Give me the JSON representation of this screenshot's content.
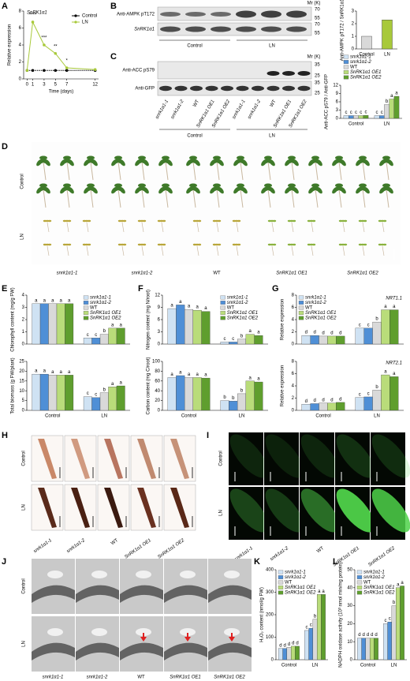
{
  "chart_data": [
    {
      "type": "line",
      "title": "SnRK1α1",
      "x_label": "Time (days)",
      "y_label": "Relative expression",
      "x": [
        0,
        1,
        3,
        5,
        7,
        12
      ],
      "xlim": [
        -0.6,
        12.6
      ],
      "xticks": [
        0,
        1,
        3,
        5,
        7,
        12
      ],
      "ylim": [
        0,
        8
      ],
      "yticks": [
        0,
        2,
        4,
        6,
        8
      ],
      "legend": "top-right",
      "series": [
        {
          "name": "Control",
          "color": "#000000",
          "values": [
            1,
            1,
            1,
            1,
            1,
            1
          ]
        },
        {
          "name": "LN",
          "color": "#a8c93a",
          "values": [
            1,
            6.7,
            4.0,
            3.0,
            1.3,
            1.1
          ]
        }
      ],
      "annotations": [
        {
          "x": 1,
          "text": "****"
        },
        {
          "x": 3,
          "text": "***"
        },
        {
          "x": 5,
          "text": "**"
        },
        {
          "x": 7,
          "text": "*"
        }
      ]
    },
    {
      "type": "bar",
      "y_label": "Anti-AMPK pT172 / SnRK1α1",
      "categories": [
        "Control",
        "LN"
      ],
      "values": [
        1,
        2.3
      ],
      "colors": [
        "#d9d9d9",
        "#a8c93a"
      ],
      "ylim": [
        0,
        3
      ],
      "yticks": [
        0,
        1,
        2,
        3
      ]
    },
    {
      "type": "bar",
      "y_label": "Anti-ACC pS79 / Anti-GFP",
      "categories": [
        "Control",
        "LN"
      ],
      "ylim": [
        0,
        12
      ],
      "yticks": [
        0,
        3,
        6,
        9,
        12
      ],
      "legend": "above",
      "series": [
        {
          "name": "snrk1α1-1",
          "color": "#cfe2f3",
          "values": [
            1,
            1
          ],
          "letters": [
            "c",
            "c"
          ]
        },
        {
          "name": "snrk1α1-2",
          "color": "#4f8fd6",
          "values": [
            1,
            1
          ],
          "letters": [
            "c",
            "c"
          ]
        },
        {
          "name": "WT",
          "color": "#d9d9d9",
          "values": [
            1,
            5
          ],
          "letters": [
            "c",
            "b"
          ]
        },
        {
          "name": "SnRK1α1 OE1",
          "color": "#b9dc7a",
          "values": [
            1,
            7
          ],
          "letters": [
            "c",
            "a"
          ]
        },
        {
          "name": "SnRK1α1 OE2",
          "color": "#5f9e2e",
          "values": [
            1.1,
            8
          ],
          "letters": [
            "c",
            "a"
          ]
        }
      ]
    },
    {
      "type": "bar",
      "y_label": "Chlorophyll content (mg/g FW)",
      "categories": [
        null,
        null
      ],
      "ylim": [
        0,
        4
      ],
      "yticks": [
        0,
        1,
        2,
        3,
        4
      ],
      "legend": "top-right",
      "series": [
        {
          "name": "snrk1α1-1",
          "color": "#cfe2f3",
          "values": [
            3.3,
            0.5
          ],
          "letters": [
            "a",
            "c"
          ]
        },
        {
          "name": "snrk1α1-2",
          "color": "#4f8fd6",
          "values": [
            3.3,
            0.5
          ],
          "letters": [
            "a",
            "c"
          ]
        },
        {
          "name": "WT",
          "color": "#d9d9d9",
          "values": [
            3.3,
            0.8
          ],
          "letters": [
            "a",
            "b"
          ]
        },
        {
          "name": "SnRK1α1 OE1",
          "color": "#b9dc7a",
          "values": [
            3.3,
            1.3
          ],
          "letters": [
            "a",
            "a"
          ]
        },
        {
          "name": "SnRK1α1 OE2",
          "color": "#5f9e2e",
          "values": [
            3.3,
            1.3
          ],
          "letters": [
            "a",
            "a"
          ]
        }
      ]
    },
    {
      "type": "bar",
      "y_label": "Total biomass (g FW/plant)",
      "categories": [
        "Control",
        "LN"
      ],
      "ylim": [
        0,
        25
      ],
      "yticks": [
        0,
        5,
        10,
        15,
        20,
        25
      ],
      "series": [
        {
          "name": "snrk1α1-1",
          "color": "#cfe2f3",
          "values": [
            18.5,
            7
          ],
          "letters": [
            "a",
            "c"
          ]
        },
        {
          "name": "snrk1α1-2",
          "color": "#4f8fd6",
          "values": [
            18.5,
            6.5
          ],
          "letters": [
            "a",
            "c"
          ]
        },
        {
          "name": "WT",
          "color": "#d9d9d9",
          "values": [
            18,
            9
          ],
          "letters": [
            "a",
            "b"
          ]
        },
        {
          "name": "SnRK1α1 OE1",
          "color": "#b9dc7a",
          "values": [
            18,
            12
          ],
          "letters": [
            "a",
            "a"
          ]
        },
        {
          "name": "SnRK1α1 OE2",
          "color": "#5f9e2e",
          "values": [
            18,
            12.5
          ],
          "letters": [
            "a",
            "a"
          ]
        }
      ]
    },
    {
      "type": "bar",
      "y_label": "Nitrogen content (mg N/root)",
      "categories": [
        null,
        null
      ],
      "ylim": [
        0,
        12
      ],
      "yticks": [
        0,
        3,
        6,
        9,
        12
      ],
      "legend": "top-right",
      "series": [
        {
          "name": "snrk1α1-1",
          "color": "#cfe2f3",
          "values": [
            8.7,
            0.5
          ],
          "letters": [
            "a",
            "c"
          ]
        },
        {
          "name": "snrk1α1-2",
          "color": "#4f8fd6",
          "values": [
            9.6,
            0.5
          ],
          "letters": [
            "a",
            "c"
          ]
        },
        {
          "name": "WT",
          "color": "#d9d9d9",
          "values": [
            8.5,
            1.2
          ],
          "letters": [
            "a",
            "b"
          ]
        },
        {
          "name": "SnRK1α1 OE1",
          "color": "#b9dc7a",
          "values": [
            8.3,
            2.4
          ],
          "letters": [
            "a",
            "a"
          ]
        },
        {
          "name": "SnRK1α1 OE2",
          "color": "#5f9e2e",
          "values": [
            8,
            2.1
          ],
          "letters": [
            "a",
            "a"
          ]
        }
      ]
    },
    {
      "type": "bar",
      "y_label": "Carbon content (mg C/root)",
      "categories": [
        "Control",
        "LN"
      ],
      "ylim": [
        0,
        100
      ],
      "yticks": [
        0,
        20,
        40,
        60,
        80,
        100
      ],
      "series": [
        {
          "name": "snrk1α1-1",
          "color": "#cfe2f3",
          "values": [
            67,
            20
          ],
          "letters": [
            "a",
            "b"
          ]
        },
        {
          "name": "snrk1α1-2",
          "color": "#4f8fd6",
          "values": [
            71,
            19
          ],
          "letters": [
            "a",
            "b"
          ]
        },
        {
          "name": "WT",
          "color": "#d9d9d9",
          "values": [
            67,
            34
          ],
          "letters": [
            "a",
            "b"
          ]
        },
        {
          "name": "SnRK1α1 OE1",
          "color": "#b9dc7a",
          "values": [
            67,
            60
          ],
          "letters": [
            "a",
            "a"
          ]
        },
        {
          "name": "SnRK1α1 OE2",
          "color": "#5f9e2e",
          "values": [
            66,
            58
          ],
          "letters": [
            "a",
            "a"
          ]
        }
      ]
    },
    {
      "type": "bar",
      "y_label": "Relative expression",
      "annotation": "NRT1.1",
      "categories": [
        null,
        null
      ],
      "ylim": [
        0,
        8
      ],
      "yticks": [
        0,
        2,
        4,
        6,
        8
      ],
      "legend": "top-left",
      "series": [
        {
          "name": "snrk1α1-1",
          "color": "#cfe2f3",
          "values": [
            1.4,
            2.6
          ],
          "letters": [
            "d",
            "c"
          ]
        },
        {
          "name": "snrk1α1-2",
          "color": "#4f8fd6",
          "values": [
            1.4,
            2.6
          ],
          "letters": [
            "d",
            "c"
          ]
        },
        {
          "name": "WT",
          "color": "#d9d9d9",
          "values": [
            1.3,
            3.6
          ],
          "letters": [
            "d",
            "b"
          ]
        },
        {
          "name": "SnRK1α1 OE1",
          "color": "#b9dc7a",
          "values": [
            1.3,
            5.6
          ],
          "letters": [
            "d",
            "a"
          ]
        },
        {
          "name": "SnRK1α1 OE2",
          "color": "#5f9e2e",
          "values": [
            1.3,
            5.6
          ],
          "letters": [
            "d",
            "a"
          ]
        }
      ]
    },
    {
      "type": "bar",
      "y_label": "Relative expression",
      "annotation": "NRT2.1",
      "categories": [
        "Control",
        "LN"
      ],
      "ylim": [
        0,
        8
      ],
      "yticks": [
        0,
        2,
        4,
        6,
        8
      ],
      "series": [
        {
          "name": "snrk1α1-1",
          "color": "#cfe2f3",
          "values": [
            1,
            2.1
          ],
          "letters": [
            "d",
            "c"
          ]
        },
        {
          "name": "snrk1α1-2",
          "color": "#4f8fd6",
          "values": [
            1.1,
            2.2
          ],
          "letters": [
            "d",
            "c"
          ]
        },
        {
          "name": "WT",
          "color": "#d9d9d9",
          "values": [
            1.2,
            3.3
          ],
          "letters": [
            "d",
            "b"
          ]
        },
        {
          "name": "SnRK1α1 OE1",
          "color": "#b9dc7a",
          "values": [
            1.2,
            5.8
          ],
          "letters": [
            "d",
            "a"
          ]
        },
        {
          "name": "SnRK1α1 OE2",
          "color": "#5f9e2e",
          "values": [
            1.3,
            5.5
          ],
          "letters": [
            "d",
            "a"
          ]
        }
      ]
    },
    {
      "type": "bar",
      "y_label": "H₂O₂ content (nmol/g FW)",
      "categories": [
        "Control",
        "LN"
      ],
      "ylim": [
        0,
        400
      ],
      "yticks": [
        0,
        100,
        200,
        300,
        400
      ],
      "legend": "top-left",
      "series": [
        {
          "name": "snrk1α1-1",
          "color": "#cfe2f3",
          "values": [
            50,
            130
          ],
          "letters": [
            "d",
            "c"
          ]
        },
        {
          "name": "snrk1α1-2",
          "color": "#4f8fd6",
          "values": [
            50,
            140
          ],
          "letters": [
            "d",
            "c"
          ]
        },
        {
          "name": "WT",
          "color": "#d9d9d9",
          "values": [
            55,
            180
          ],
          "letters": [
            "d",
            "b"
          ]
        },
        {
          "name": "SnRK1α1 OE1",
          "color": "#b9dc7a",
          "values": [
            60,
            290
          ],
          "letters": [
            "d",
            "a"
          ]
        },
        {
          "name": "SnRK1α1 OE2",
          "color": "#5f9e2e",
          "values": [
            60,
            290
          ],
          "letters": [
            "d",
            "a"
          ]
        }
      ]
    },
    {
      "type": "bar",
      "y_label": "NADPH oxidase activity (10³ nmol min/mg protein)",
      "categories": [
        "Control",
        "LN"
      ],
      "ylim": [
        0,
        50
      ],
      "yticks": [
        0,
        10,
        20,
        30,
        40,
        50
      ],
      "legend": "top-left",
      "series": [
        {
          "name": "snrk1α1-1",
          "color": "#cfe2f3",
          "values": [
            12,
            20
          ],
          "letters": [
            "d",
            "c"
          ]
        },
        {
          "name": "snrk1α1-2",
          "color": "#4f8fd6",
          "values": [
            12,
            21
          ],
          "letters": [
            "d",
            "c"
          ]
        },
        {
          "name": "WT",
          "color": "#d9d9d9",
          "values": [
            12,
            30
          ],
          "letters": [
            "d",
            "b"
          ]
        },
        {
          "name": "SnRK1α1 OE1",
          "color": "#b9dc7a",
          "values": [
            12,
            40
          ],
          "letters": [
            "d",
            "a"
          ]
        },
        {
          "name": "SnRK1α1 OE2",
          "color": "#5f9e2e",
          "values": [
            12,
            41
          ],
          "letters": [
            "d",
            "a"
          ]
        }
      ]
    }
  ],
  "panels": [
    "A",
    "B",
    "C",
    "D",
    "E",
    "F",
    "G",
    "H",
    "I",
    "J",
    "K",
    "L"
  ],
  "blot_b": {
    "mr": "Mr (K)",
    "rows": [
      "Anti-AMPK pT172",
      "SnRK1α1"
    ],
    "markers": [
      70,
      55,
      70,
      55
    ],
    "groups": [
      "Control",
      "LN"
    ]
  },
  "blot_c": {
    "mr": "Mr (K)",
    "rows": [
      "Anti-ACC pS79",
      "Anti-GFP"
    ],
    "markers": [
      35,
      25,
      35,
      25
    ],
    "lanes": [
      "snrk1α1-1",
      "snrk1α1-2",
      "WT",
      "SnRK1α1 OE1",
      "SnRK1α1 OE2",
      "snrk1α1-1",
      "snrk1α1-2",
      "WT",
      "SnRK1α1 OE1",
      "SnRK1α1 OE2"
    ],
    "groups": [
      "Control",
      "LN"
    ]
  },
  "photos_d": {
    "rows": [
      "Control",
      "LN"
    ],
    "columns": [
      "snrk1α1-1",
      "snrk1α1-2",
      "WT",
      "SnRK1α1 OE1",
      "SnRK1α1 OE2"
    ]
  },
  "photos_h": {
    "rows": [
      "Control",
      "LN"
    ],
    "columns": [
      "snrk1α1-1",
      "snrk1α1-2",
      "WT",
      "SnRK1α1 OE1",
      "SnRK1α1 OE2"
    ]
  },
  "photos_i": {
    "rows": [
      "Control",
      "LN"
    ],
    "columns": [
      "snrk1α1-1",
      "snrk1α1-2",
      "WT",
      "SnRK1α1 OE1",
      "SnRK1α1 OE2"
    ]
  },
  "photos_j": {
    "rows": [
      "Control",
      "LN"
    ],
    "columns": [
      "snrk1α1-1",
      "snrk1α1-2",
      "WT",
      "SnRK1α1 OE1",
      "SnRK1α1 OE2"
    ]
  }
}
